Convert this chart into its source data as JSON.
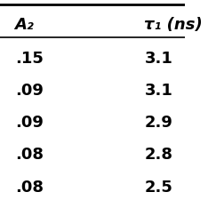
{
  "col1_header": "A₂",
  "col2_header": "τ₁ (ns)",
  "col1_values": [
    ".15",
    ".09",
    ".09",
    ".08",
    ".08"
  ],
  "col2_values": [
    "3.1",
    "3.1",
    "2.9",
    "2.8",
    "2.5"
  ],
  "bg_color": "#ffffff",
  "header_line_color": "#000000",
  "text_color": "#000000",
  "font_size": 13,
  "header_font_size": 13
}
